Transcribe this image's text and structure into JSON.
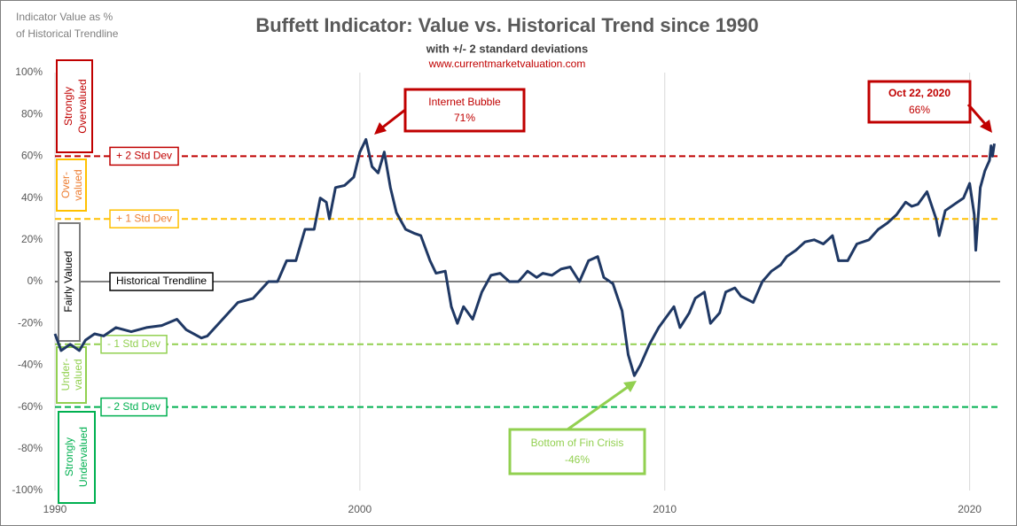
{
  "chart_data": {
    "type": "line",
    "title": "Buffett Indicator: Value vs. Historical Trend since 1990",
    "subtitle": "with +/- 2 standard deviations",
    "source": "www.currentmarketvaluation.com",
    "y_axis_label": [
      "Indicator Value as %",
      "of Historical Trendline"
    ],
    "xlim": [
      1990,
      2021
    ],
    "xticks": [
      1990,
      2000,
      2010,
      2020
    ],
    "ylim": [
      -100,
      100
    ],
    "yticks": [
      {
        "value": -100,
        "label": "-100%"
      },
      {
        "value": -80,
        "label": "-80%"
      },
      {
        "value": -60,
        "label": "-60%"
      },
      {
        "value": -40,
        "label": "-40%"
      },
      {
        "value": -20,
        "label": "-20%"
      },
      {
        "value": 0,
        "label": "0%"
      },
      {
        "value": 20,
        "label": "20%"
      },
      {
        "value": 40,
        "label": "40%"
      },
      {
        "value": 60,
        "label": "60%"
      },
      {
        "value": 80,
        "label": "80%"
      },
      {
        "value": 100,
        "label": "100%"
      }
    ],
    "grid": "x",
    "reference_lines": [
      {
        "value": 60,
        "label": "+ 2 Std Dev",
        "color": "#c00000",
        "dashed": true
      },
      {
        "value": 30,
        "label": "+ 1 Std Dev",
        "color": "#ffc000",
        "dashed": true
      },
      {
        "value": 0,
        "label": "Historical Trendline",
        "color": "#000000",
        "dashed": false
      },
      {
        "value": -30,
        "label": "- 1 Std Dev",
        "color": "#92d050",
        "dashed": true
      },
      {
        "value": -60,
        "label": "- 2 Std Dev",
        "color": "#00b050",
        "dashed": true
      }
    ],
    "zones": [
      {
        "lines": [
          "Strongly",
          "Overvalued"
        ],
        "color": "#c00000"
      },
      {
        "lines": [
          "Over-",
          "valued"
        ],
        "color": "#ffc000"
      },
      {
        "lines": [
          "Fairly Valued"
        ],
        "color": "#7f7f7f"
      },
      {
        "lines": [
          "Under-",
          "valued"
        ],
        "color": "#92d050"
      },
      {
        "lines": [
          "Strongly",
          "Undervalued"
        ],
        "color": "#00b050"
      }
    ],
    "annotations": [
      {
        "lines": [
          "Internet Bubble",
          "71%"
        ]
      },
      {
        "lines": [
          "Oct 22, 2020",
          "66%"
        ]
      },
      {
        "lines": [
          "Bottom  of Fin Crisis",
          "-46%"
        ]
      }
    ],
    "series": [
      {
        "color": "#1f3864",
        "x": [
          1990.0,
          1990.2,
          1990.5,
          1990.8,
          1991.0,
          1991.3,
          1991.6,
          1992.0,
          1992.5,
          1993.0,
          1993.5,
          1994.0,
          1994.3,
          1994.8,
          1995.0,
          1995.5,
          1996.0,
          1996.5,
          1997.0,
          1997.3,
          1997.6,
          1997.9,
          1998.2,
          1998.5,
          1998.7,
          1998.9,
          1999.0,
          1999.2,
          1999.5,
          1999.8,
          2000.0,
          2000.2,
          2000.4,
          2000.6,
          2000.8,
          2001.0,
          2001.2,
          2001.5,
          2001.8,
          2002.0,
          2002.3,
          2002.5,
          2002.8,
          2003.0,
          2003.2,
          2003.4,
          2003.7,
          2004.0,
          2004.3,
          2004.6,
          2004.9,
          2005.2,
          2005.5,
          2005.8,
          2006.0,
          2006.3,
          2006.6,
          2006.9,
          2007.2,
          2007.5,
          2007.8,
          2008.0,
          2008.3,
          2008.6,
          2008.8,
          2009.0,
          2009.2,
          2009.5,
          2009.8,
          2010.0,
          2010.3,
          2010.5,
          2010.8,
          2011.0,
          2011.3,
          2011.5,
          2011.8,
          2012.0,
          2012.3,
          2012.5,
          2012.9,
          2013.2,
          2013.5,
          2013.8,
          2014.0,
          2014.3,
          2014.6,
          2014.9,
          2015.2,
          2015.5,
          2015.7,
          2016.0,
          2016.3,
          2016.7,
          2017.0,
          2017.3,
          2017.6,
          2017.9,
          2018.1,
          2018.3,
          2018.6,
          2018.9,
          2019.0,
          2019.2,
          2019.5,
          2019.8,
          2020.0,
          2020.15,
          2020.2,
          2020.35,
          2020.5,
          2020.65,
          2020.7,
          2020.75,
          2020.81
        ],
        "values": [
          -25,
          -33,
          -30,
          -33,
          -28,
          -25,
          -26,
          -22,
          -24,
          -22,
          -21,
          -18,
          -23,
          -27,
          -26,
          -18,
          -10,
          -8,
          0,
          0,
          10,
          10,
          25,
          25,
          40,
          38,
          30,
          45,
          46,
          50,
          62,
          68,
          55,
          52,
          62,
          45,
          33,
          25,
          23,
          22,
          10,
          4,
          5,
          -12,
          -20,
          -12,
          -18,
          -5,
          3,
          4,
          0,
          0,
          5,
          2,
          4,
          3,
          6,
          7,
          0,
          10,
          12,
          2,
          -1,
          -14,
          -35,
          -45,
          -40,
          -30,
          -22,
          -18,
          -12,
          -22,
          -15,
          -8,
          -5,
          -20,
          -15,
          -5,
          -3,
          -7,
          -10,
          0,
          5,
          8,
          12,
          15,
          19,
          20,
          18,
          22,
          10,
          10,
          18,
          20,
          25,
          28,
          32,
          38,
          36,
          37,
          43,
          30,
          22,
          34,
          37,
          40,
          47,
          32,
          15,
          45,
          53,
          58,
          65,
          60,
          66
        ]
      }
    ]
  }
}
